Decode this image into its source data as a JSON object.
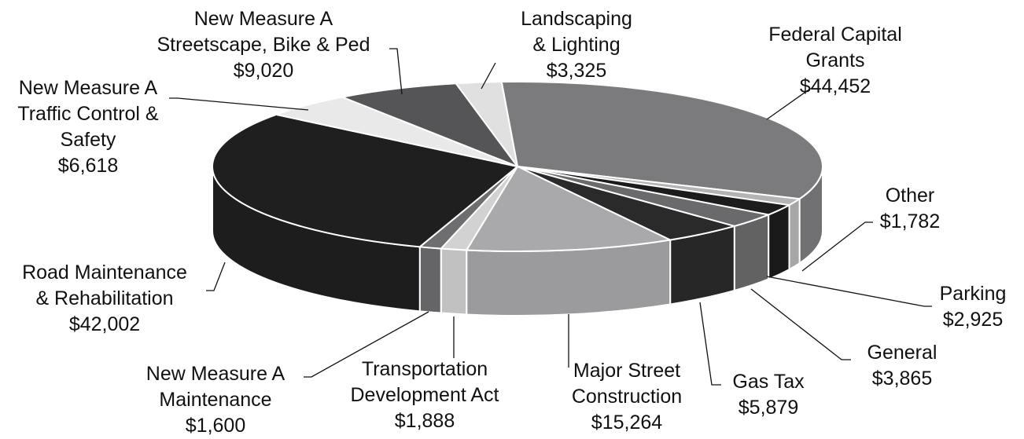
{
  "chart_data": {
    "type": "pie",
    "three_d": true,
    "categories": [
      "Federal Capital\nGrants",
      "Other",
      "Parking",
      "General",
      "Gas Tax",
      "Major Street\nConstruction",
      "Transportation\nDevelopment Act",
      "New Measure A\nMaintenance",
      "Road Maintenance\n& Rehabilitation",
      "New Measure A\nTraffic Control &\nSafety",
      "New Measure A\nStreetscape, Bike & Ped",
      "Landscaping\n& Lighting"
    ],
    "values": [
      44452,
      1782,
      2925,
      3865,
      5879,
      15264,
      1888,
      1600,
      42002,
      6618,
      9020,
      3325
    ],
    "value_labels": [
      "$44,452",
      "$1,782",
      "$2,925",
      "$3,865",
      "$5,879",
      "$15,264",
      "$1,888",
      "$1,600",
      "$42,002",
      "$6,618",
      "$9,020",
      "$3,325"
    ],
    "colors": [
      "#7b7b7d",
      "#b4b4b4",
      "#1c1c1c",
      "#6a6a6c",
      "#2a2a2a",
      "#a9a9ab",
      "#d2d2d2",
      "#6e6e70",
      "#1f1f1f",
      "#e9e9e9",
      "#555557",
      "#e0e0e0"
    ]
  }
}
